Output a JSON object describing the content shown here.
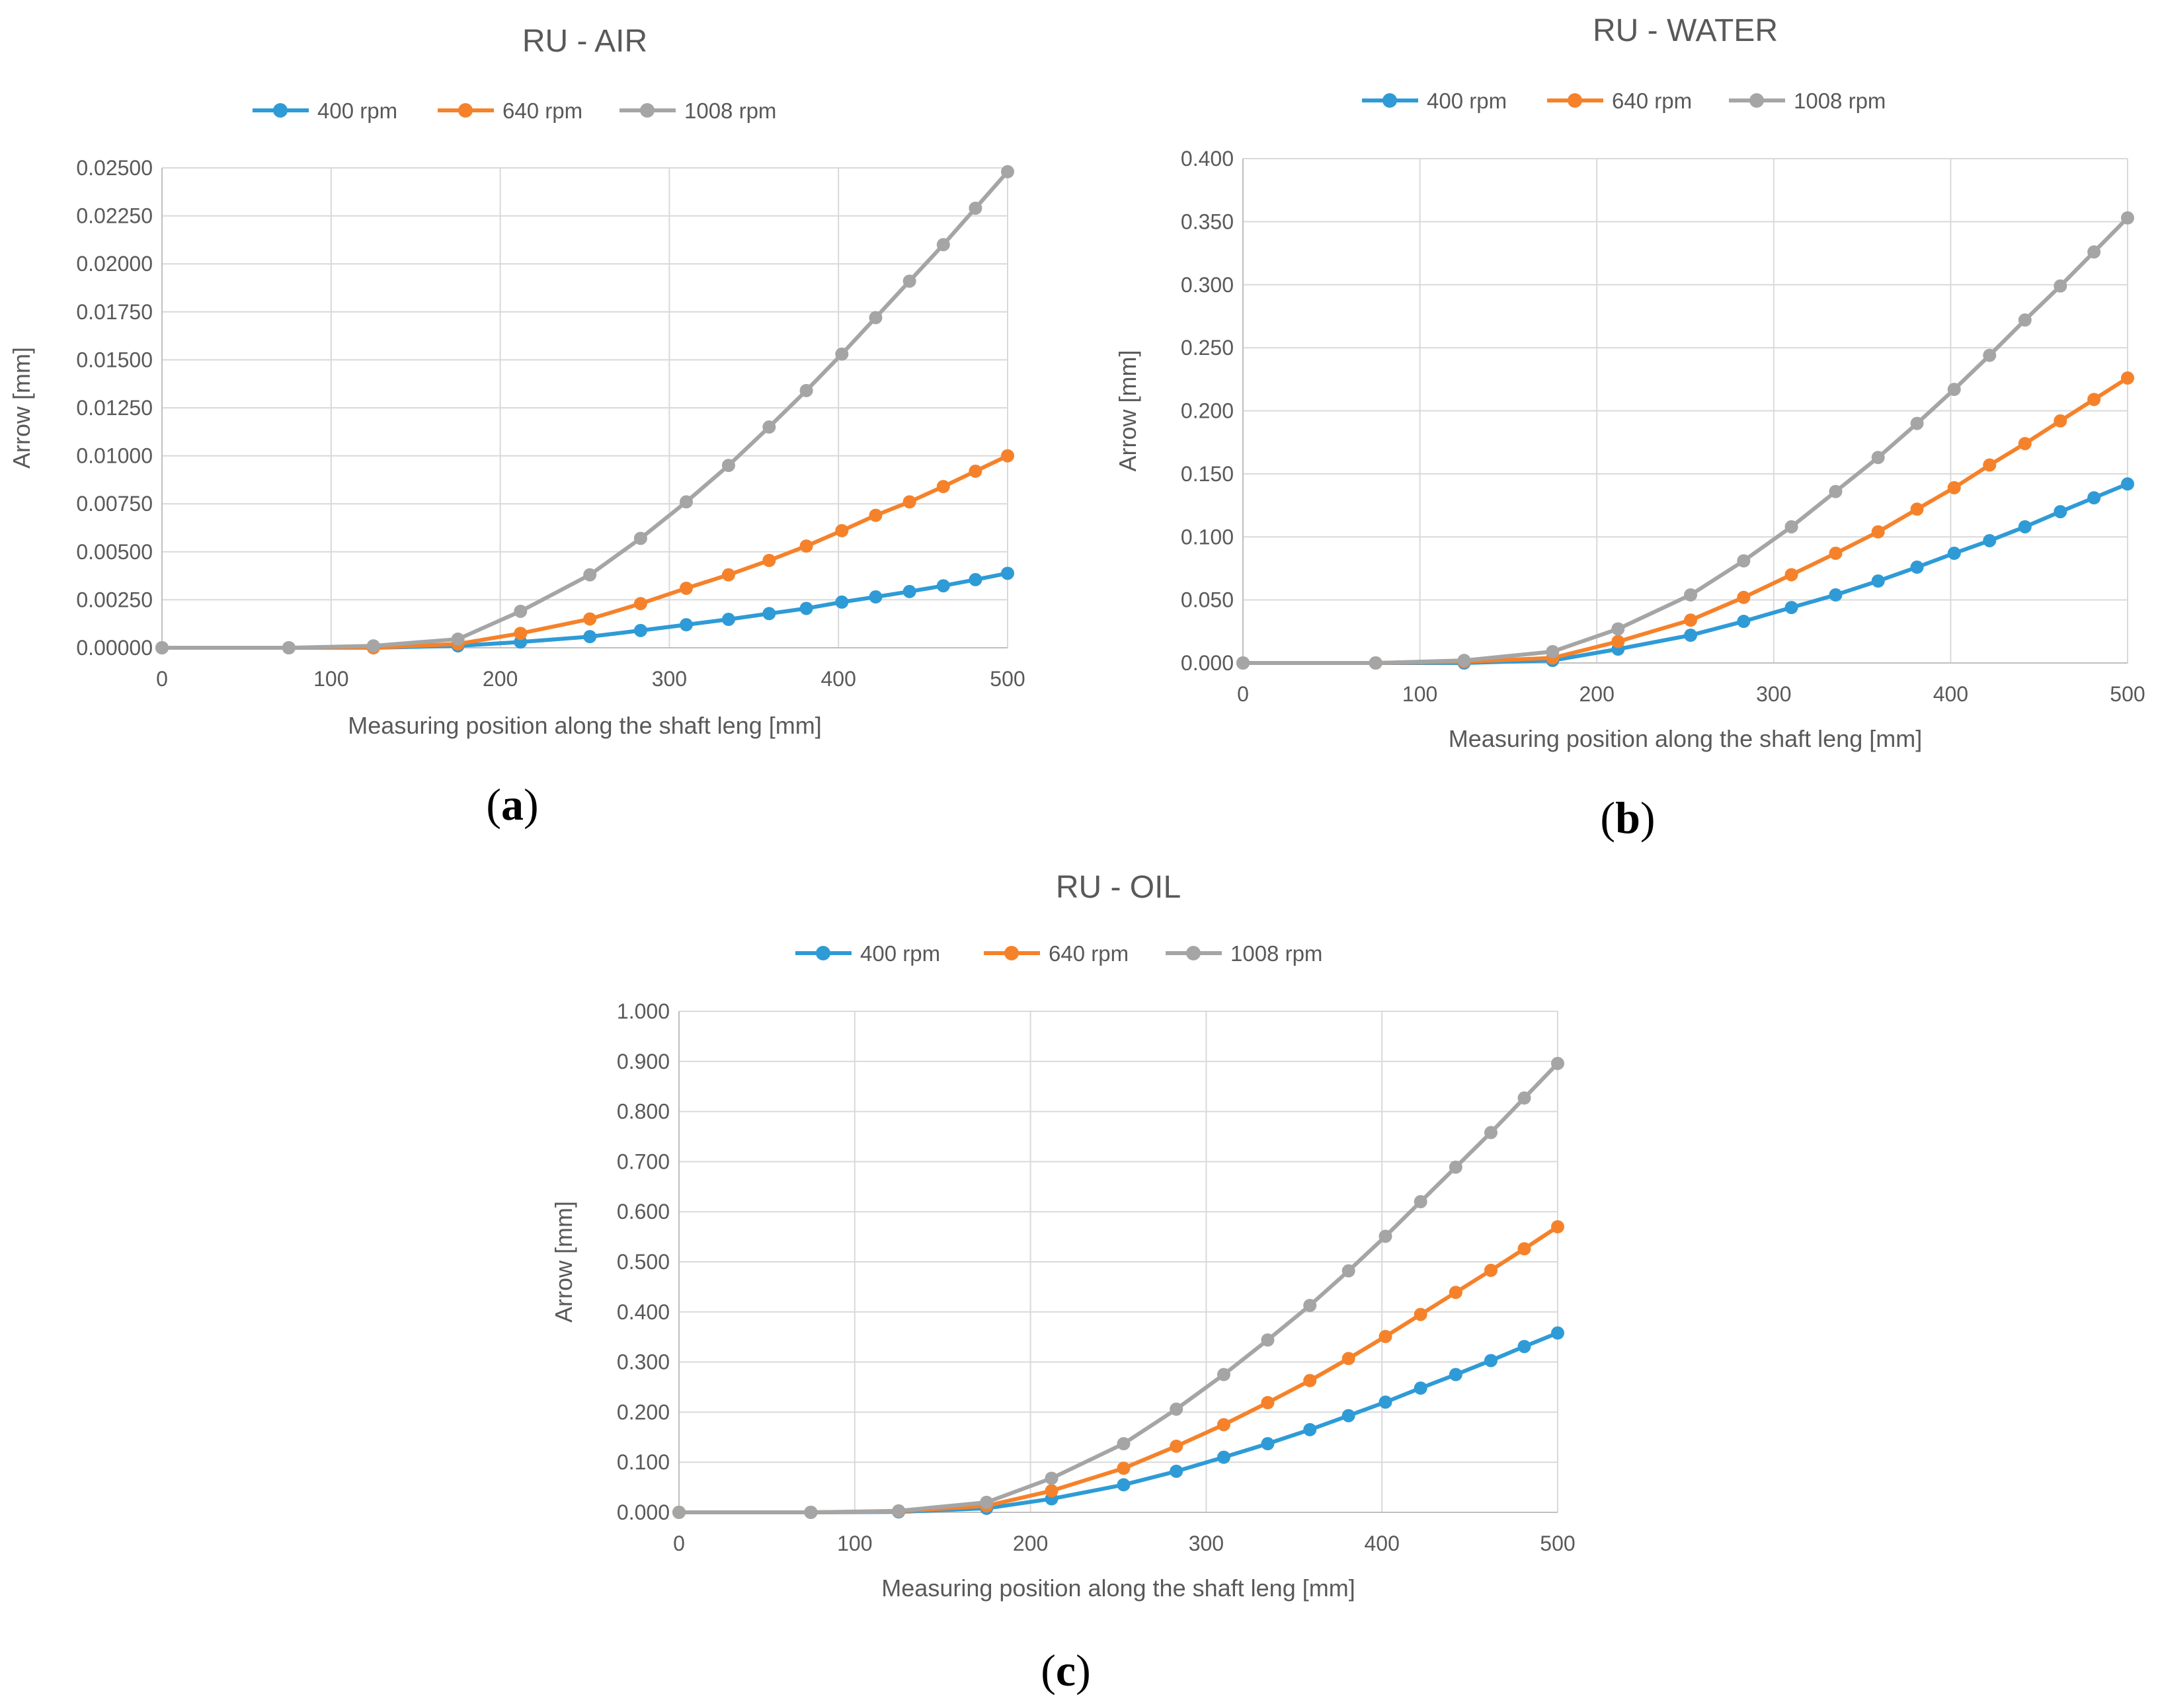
{
  "figure": {
    "panels": [
      {
        "id": "a",
        "label_letter": "a"
      },
      {
        "id": "b",
        "label_letter": "b"
      },
      {
        "id": "c",
        "label_letter": "c"
      }
    ]
  },
  "colors": {
    "s400": "#2E9BD6",
    "s640": "#F5822A",
    "s1008": "#A5A5A5",
    "grid": "#D9D9D9",
    "axis": "#BFBFBF",
    "text": "#595959"
  },
  "chart_data": [
    {
      "type": "line",
      "title": "RU - AIR",
      "xlabel": "Measuring position along the shaft leng [mm]",
      "ylabel": "Arrow [mm]",
      "xlim": [
        0,
        500
      ],
      "ylim": [
        0,
        0.025
      ],
      "x_ticks": [
        "0",
        "100",
        "200",
        "300",
        "400",
        "500"
      ],
      "y_ticks": [
        "0.00000",
        "0.00250",
        "0.00500",
        "0.00750",
        "0.01000",
        "0.01250",
        "0.01500",
        "0.01750",
        "0.02000",
        "0.02250",
        "0.02500"
      ],
      "legend": "top",
      "x": [
        0,
        75,
        125,
        175,
        212,
        253,
        283,
        310,
        335,
        359,
        381,
        402,
        422,
        442,
        462,
        481,
        500
      ],
      "series": [
        {
          "name": "400 rpm",
          "values": [
            0,
            0,
            0,
            0.0001,
            0.0003,
            0.00058,
            0.0009,
            0.0012,
            0.00148,
            0.00178,
            0.00205,
            0.00238,
            0.00265,
            0.00293,
            0.00323,
            0.00355,
            0.00388
          ]
        },
        {
          "name": "640 rpm",
          "values": [
            0,
            0,
            0,
            0.0002,
            0.00075,
            0.0015,
            0.0023,
            0.0031,
            0.0038,
            0.00455,
            0.0053,
            0.0061,
            0.0069,
            0.0076,
            0.0084,
            0.0092,
            0.01
          ]
        },
        {
          "name": "1008 rpm",
          "values": [
            0,
            0,
            0.0001,
            0.00045,
            0.0019,
            0.0038,
            0.0057,
            0.0076,
            0.0095,
            0.0115,
            0.0134,
            0.0153,
            0.0172,
            0.0191,
            0.021,
            0.0229,
            0.0248
          ]
        }
      ]
    },
    {
      "type": "line",
      "title": "RU - WATER",
      "xlabel": "Measuring position along the shaft leng [mm]",
      "ylabel": "Arrow [mm]",
      "xlim": [
        0,
        500
      ],
      "ylim": [
        0,
        0.4
      ],
      "x_ticks": [
        "0",
        "100",
        "200",
        "300",
        "400",
        "500"
      ],
      "y_ticks": [
        "0.000",
        "0.050",
        "0.100",
        "0.150",
        "0.200",
        "0.250",
        "0.300",
        "0.350",
        "0.400"
      ],
      "legend": "top",
      "x": [
        0,
        75,
        125,
        175,
        212,
        253,
        283,
        310,
        335,
        359,
        381,
        402,
        422,
        442,
        462,
        481,
        500
      ],
      "series": [
        {
          "name": "400 rpm",
          "values": [
            0,
            0,
            0,
            0.002,
            0.011,
            0.022,
            0.033,
            0.044,
            0.054,
            0.065,
            0.076,
            0.087,
            0.097,
            0.108,
            0.12,
            0.131,
            0.142
          ]
        },
        {
          "name": "640 rpm",
          "values": [
            0,
            0,
            0.001,
            0.004,
            0.017,
            0.034,
            0.052,
            0.07,
            0.087,
            0.104,
            0.122,
            0.139,
            0.157,
            0.174,
            0.192,
            0.209,
            0.226
          ]
        },
        {
          "name": "1008 rpm",
          "values": [
            0,
            0,
            0.002,
            0.009,
            0.027,
            0.054,
            0.081,
            0.108,
            0.136,
            0.163,
            0.19,
            0.217,
            0.244,
            0.272,
            0.299,
            0.326,
            0.353
          ]
        }
      ]
    },
    {
      "type": "line",
      "title": "RU - OIL",
      "xlabel": "Measuring position along the shaft leng [mm]",
      "ylabel": "Arrow [mm]",
      "xlim": [
        0,
        500
      ],
      "ylim": [
        0,
        1.0
      ],
      "x_ticks": [
        "0",
        "100",
        "200",
        "300",
        "400",
        "500"
      ],
      "y_ticks": [
        "0.000",
        "0.100",
        "0.200",
        "0.300",
        "0.400",
        "0.500",
        "0.600",
        "0.700",
        "0.800",
        "0.900",
        "1.000"
      ],
      "legend": "top",
      "x": [
        0,
        75,
        125,
        175,
        212,
        253,
        283,
        310,
        335,
        359,
        381,
        402,
        422,
        442,
        462,
        481,
        500
      ],
      "series": [
        {
          "name": "400 rpm",
          "values": [
            0,
            0,
            0.001,
            0.008,
            0.027,
            0.055,
            0.082,
            0.11,
            0.137,
            0.165,
            0.193,
            0.22,
            0.248,
            0.275,
            0.303,
            0.331,
            0.358
          ]
        },
        {
          "name": "640 rpm",
          "values": [
            0,
            0,
            0.002,
            0.013,
            0.043,
            0.088,
            0.132,
            0.175,
            0.219,
            0.263,
            0.307,
            0.351,
            0.395,
            0.439,
            0.483,
            0.526,
            0.57
          ]
        },
        {
          "name": "1008 rpm",
          "values": [
            0,
            0,
            0.003,
            0.02,
            0.068,
            0.137,
            0.206,
            0.275,
            0.344,
            0.413,
            0.482,
            0.551,
            0.62,
            0.689,
            0.758,
            0.827,
            0.896
          ]
        }
      ]
    }
  ]
}
